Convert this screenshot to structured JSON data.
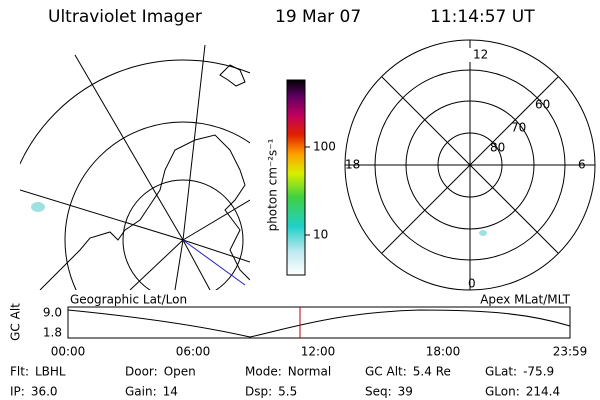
{
  "header": {
    "instrument": "Ultraviolet Imager",
    "date": "19 Mar 07",
    "time": "11:14:57 UT"
  },
  "map_title": "Geographic Lat/Lon",
  "polar_title": "Apex MLat/MLT",
  "colorbar": {
    "label": "photon cm⁻²s⁻¹",
    "ticks": [
      "100",
      "10"
    ]
  },
  "polar": {
    "mlt_labels": [
      "12",
      "18",
      "6",
      "0"
    ],
    "mlat_labels": [
      "60",
      "70",
      "80"
    ]
  },
  "altitude_plot": {
    "axis_label": "GC Alt",
    "yticks": [
      "9.0",
      "1.8"
    ],
    "xticks": [
      "00:00",
      "06:00",
      "12:00",
      "18:00",
      "23:59"
    ]
  },
  "info": [
    [
      {
        "label": "Flt:",
        "value": "LBHL"
      },
      {
        "label": "Door:",
        "value": "Open"
      },
      {
        "label": "Mode:",
        "value": "Normal"
      },
      {
        "label": "GC Alt:",
        "value": "5.4 Re"
      },
      {
        "label": "GLat:",
        "value": "-75.9"
      }
    ],
    [
      {
        "label": "IP:",
        "value": "36.0"
      },
      {
        "label": "Gain:",
        "value": "14"
      },
      {
        "label": "Dsp:",
        "value": "5.5"
      },
      {
        "label": "Seq:",
        "value": "39"
      },
      {
        "label": "GLon:",
        "value": "214.4"
      }
    ]
  ]
}
